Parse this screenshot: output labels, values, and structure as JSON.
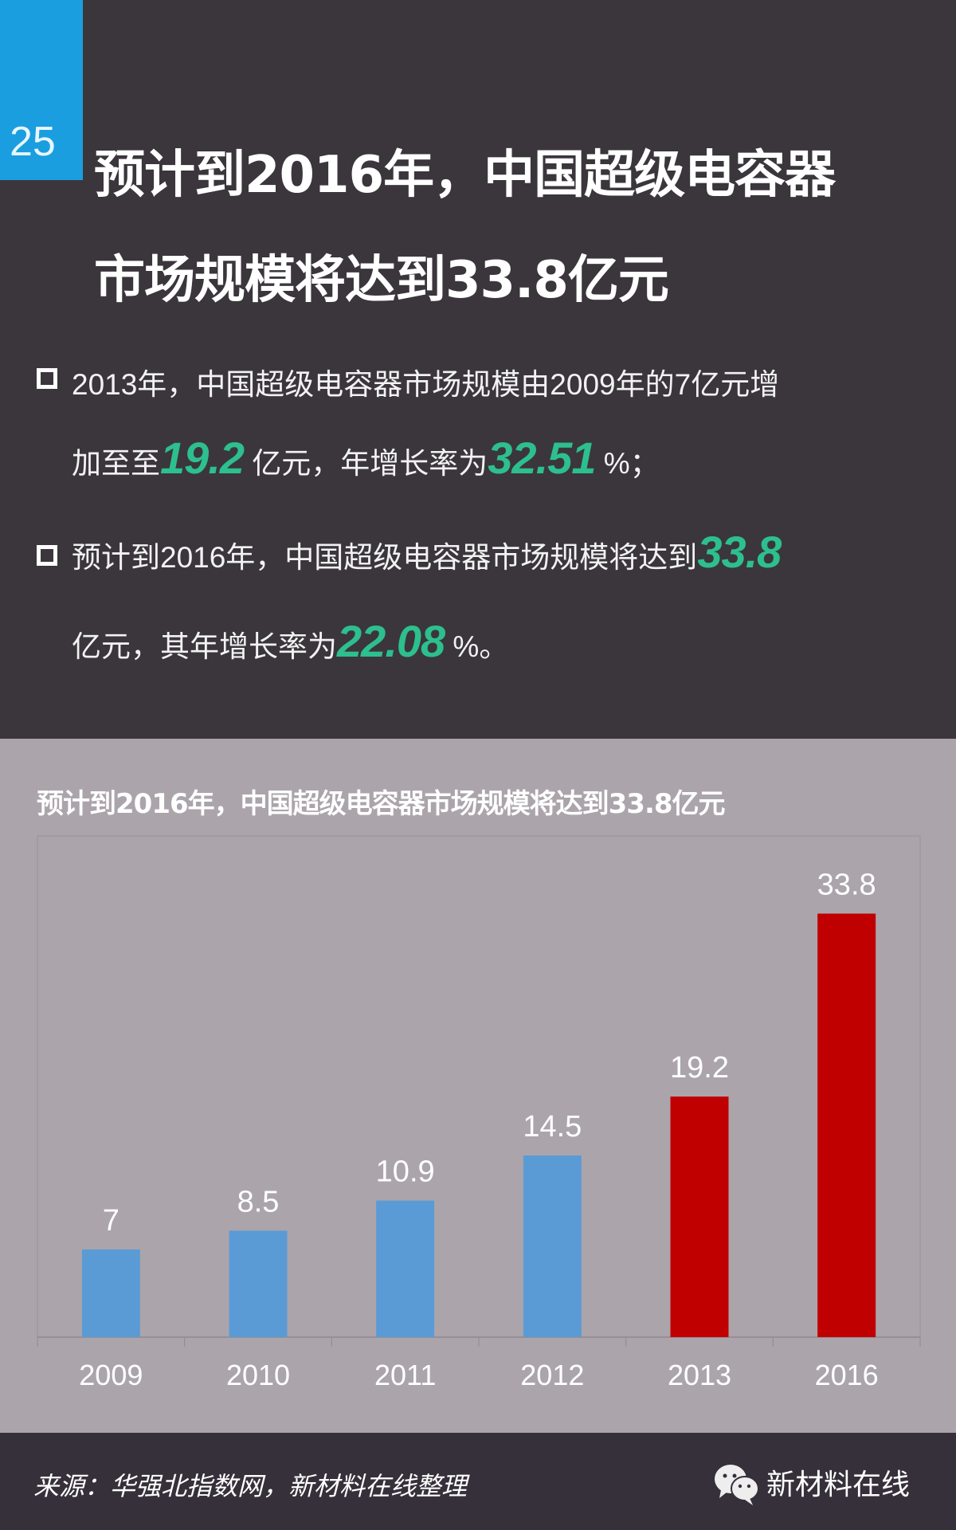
{
  "slide_number": "25",
  "headline": {
    "line1": "预计到2016年，中国超级电容器",
    "line2": "市场规模将达到33.8亿元"
  },
  "bullets": [
    {
      "l1": "2013年，中国超级电容器市场规模由2009年的7亿元增",
      "l2a": "加至至",
      "v1": "19.2",
      "l2b": " 亿元，年增长率为",
      "v2": "32.51",
      "l2c": " %；"
    },
    {
      "l1": "预计到2016年，中国超级电容器市场规模将达到",
      "v1": "33.8",
      "l2a": "亿元，其年增长率为",
      "v2": "22.08",
      "l2b": " %。"
    }
  ],
  "colors": {
    "accent": "#1a9ee0",
    "highlight": "#2dbf8d",
    "bar_actual": "#5b9bd5",
    "bar_highlight": "#c00000"
  },
  "chart_data": {
    "type": "bar",
    "title": "预计到2016年，中国超级电容器市场规模将达到33.8亿元",
    "categories": [
      "2009",
      "2010",
      "2011",
      "2012",
      "2013",
      "2016"
    ],
    "values": [
      7,
      8.5,
      10.9,
      14.5,
      19.2,
      33.8
    ],
    "data_labels": [
      "7",
      "8.5",
      "10.9",
      "14.5",
      "19.2",
      "33.8"
    ],
    "bar_colors": [
      "#5b9bd5",
      "#5b9bd5",
      "#5b9bd5",
      "#5b9bd5",
      "#c00000",
      "#c00000"
    ],
    "ylim": [
      0,
      40
    ],
    "grid": false,
    "xlabel": "",
    "ylabel": ""
  },
  "footer": {
    "source": "来源：华强北指数网，新材料在线整理",
    "brand": "新材料在线",
    "brand_icon": "wechat-icon"
  }
}
